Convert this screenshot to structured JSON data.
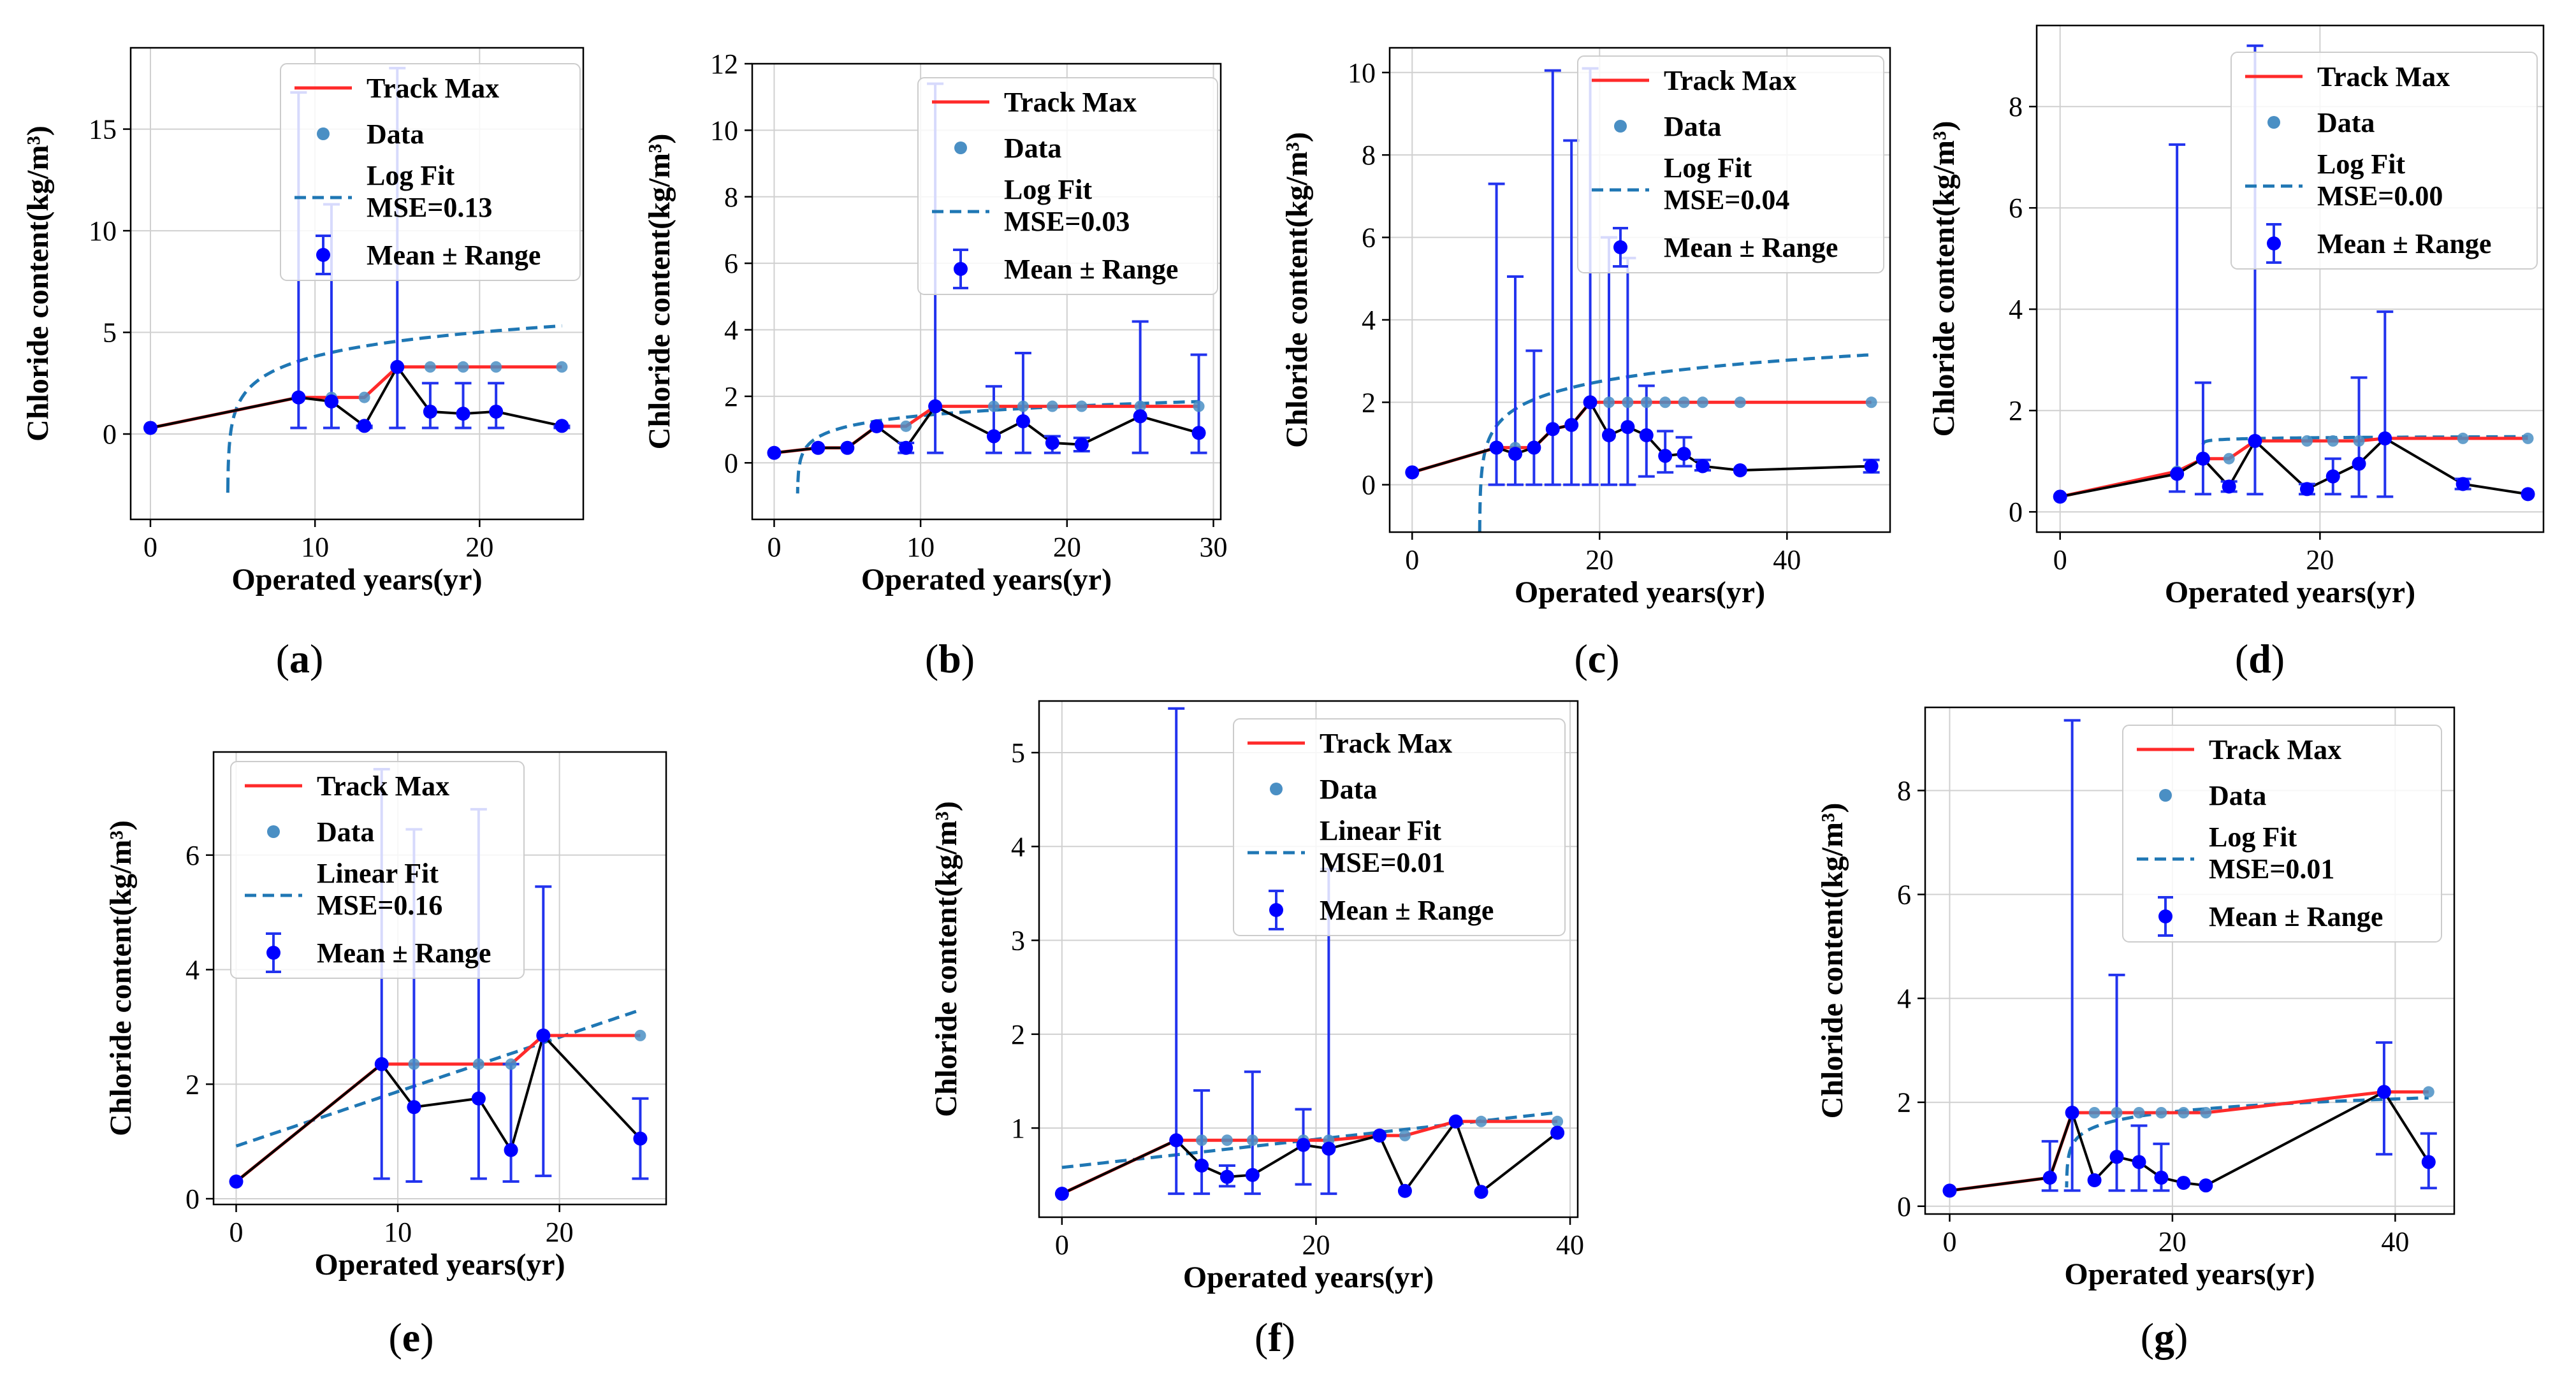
{
  "colors": {
    "track_max": "#ff2a2a",
    "data": "#4a8fc4",
    "fit": "#1f77b4",
    "mean": "#0000ff",
    "errbar": "#2233ee",
    "mean_line": "#000000"
  },
  "legend_labels": {
    "track_max": "Track Max",
    "data": "Data",
    "mean_range": "Mean ± Range"
  },
  "chart_data": [
    {
      "id": "a",
      "panel_label": "(a)",
      "type": "line",
      "xlabel": "Operated years(yr)",
      "ylabel": "Chloride content(kg/m³)",
      "xlim": [
        -1.2,
        26.3
      ],
      "ylim": [
        -4.2,
        19.0
      ],
      "xticks": [
        0,
        10,
        20
      ],
      "yticks": [
        0,
        5,
        10,
        15
      ],
      "legend": {
        "position": "top-right",
        "fit_line1": "Log Fit",
        "fit_line2": "MSE=0.13"
      },
      "fit": {
        "kind": "log",
        "a": 1.12,
        "b": 1.95,
        "x0": 4.7,
        "x_end": 25
      },
      "track_max": {
        "x": [
          0,
          9,
          11,
          13,
          15,
          17,
          19,
          21,
          25
        ],
        "y": [
          0.3,
          1.8,
          1.8,
          1.8,
          3.3,
          3.3,
          3.3,
          3.3,
          3.3
        ]
      },
      "mean": {
        "x": [
          0,
          9,
          11,
          13,
          15,
          17,
          19,
          21,
          25
        ],
        "y": [
          0.3,
          1.8,
          1.6,
          0.4,
          3.3,
          1.1,
          1.0,
          1.1,
          0.4
        ],
        "low": [
          0.3,
          0.3,
          0.3,
          0.3,
          0.3,
          0.3,
          0.3,
          0.3,
          0.3
        ],
        "high": [
          0.3,
          16.8,
          11.3,
          0.4,
          18.0,
          2.5,
          2.5,
          2.5,
          0.4
        ]
      }
    },
    {
      "id": "b",
      "panel_label": "(b)",
      "type": "line",
      "xlabel": "Operated years(yr)",
      "ylabel": "Chloride content(kg/m³)",
      "xlim": [
        -1.5,
        30.5
      ],
      "ylim": [
        -1.7,
        12.0
      ],
      "xticks": [
        0,
        10,
        20,
        30
      ],
      "yticks": [
        0,
        2,
        4,
        6,
        8,
        10,
        12
      ],
      "legend": {
        "position": "top-right",
        "fit_line1": "Log Fit",
        "fit_line2": "MSE=0.03"
      },
      "fit": {
        "kind": "log",
        "a": 0.36,
        "b": 0.65,
        "x0": 1.6,
        "x_end": 29
      },
      "track_max": {
        "x": [
          0,
          3,
          5,
          7,
          9,
          11,
          15,
          17,
          19,
          21,
          25,
          29
        ],
        "y": [
          0.3,
          0.45,
          0.45,
          1.1,
          1.1,
          1.7,
          1.7,
          1.7,
          1.7,
          1.7,
          1.7,
          1.7
        ]
      },
      "mean": {
        "x": [
          0,
          3,
          5,
          7,
          9,
          11,
          15,
          17,
          19,
          21,
          25,
          29
        ],
        "y": [
          0.3,
          0.45,
          0.45,
          1.1,
          0.45,
          1.7,
          0.8,
          1.25,
          0.6,
          0.55,
          1.4,
          0.9
        ],
        "low": [
          0.3,
          0.45,
          0.45,
          1.1,
          0.3,
          0.3,
          0.3,
          0.3,
          0.3,
          0.35,
          0.3,
          0.3
        ],
        "high": [
          0.3,
          0.45,
          0.45,
          1.1,
          0.6,
          11.4,
          2.3,
          3.3,
          0.8,
          0.75,
          4.25,
          3.25
        ]
      }
    },
    {
      "id": "c",
      "panel_label": "(c)",
      "type": "line",
      "xlabel": "Operated years(yr)",
      "ylabel": "Chloride content(kg/m³)",
      "xlim": [
        -2.4,
        51.0
      ],
      "ylim": [
        -1.15,
        10.6
      ],
      "xticks": [
        0,
        20,
        40
      ],
      "yticks": [
        0,
        2,
        4,
        6,
        8,
        10
      ],
      "legend": {
        "position": "top-right",
        "fit_line1": "Log Fit",
        "fit_line2": "MSE=0.04"
      },
      "fit": {
        "kind": "log",
        "a": 0.55,
        "b": 1.1,
        "x0": 7.2,
        "x_end": 49
      },
      "track_max": {
        "x": [
          0,
          9,
          11,
          13,
          15,
          17,
          19,
          21,
          23,
          25,
          27,
          29,
          31,
          35,
          49
        ],
        "y": [
          0.3,
          0.9,
          0.9,
          0.9,
          1.35,
          1.45,
          2.0,
          2.0,
          2.0,
          2.0,
          2.0,
          2.0,
          2.0,
          2.0,
          2.0
        ]
      },
      "mean": {
        "x": [
          0,
          9,
          11,
          13,
          15,
          17,
          19,
          21,
          23,
          25,
          27,
          29,
          31,
          35,
          49
        ],
        "y": [
          0.3,
          0.9,
          0.75,
          0.9,
          1.35,
          1.45,
          2.0,
          1.2,
          1.4,
          1.2,
          0.7,
          0.75,
          0.45,
          0.35,
          0.45
        ],
        "low": [
          0.3,
          0.0,
          0.0,
          0.0,
          0.0,
          0.0,
          0.0,
          0.0,
          0.0,
          0.2,
          0.3,
          0.45,
          0.35,
          0.35,
          0.3
        ],
        "high": [
          0.3,
          7.3,
          5.05,
          3.25,
          10.05,
          8.35,
          10.1,
          6.0,
          5.5,
          2.4,
          1.3,
          1.15,
          0.6,
          0.35,
          0.6
        ]
      }
    },
    {
      "id": "d",
      "panel_label": "(d)",
      "type": "line",
      "xlabel": "Operated years(yr)",
      "ylabel": "Chloride content(kg/m³)",
      "xlim": [
        -1.8,
        37.2
      ],
      "ylim": [
        -0.4,
        9.6
      ],
      "xticks": [
        0,
        20
      ],
      "yticks": [
        0,
        2,
        4,
        6,
        8
      ],
      "legend": {
        "position": "top-right",
        "fit_line1": "Log Fit",
        "fit_line2": "MSE=0.00"
      },
      "fit": {
        "kind": "log",
        "a": 0.02,
        "b": 1.42,
        "x0": 11,
        "x_end": 36
      },
      "track_max": {
        "x": [
          0,
          9,
          11,
          13,
          15,
          19,
          21,
          23,
          25,
          31,
          36
        ],
        "y": [
          0.3,
          0.8,
          1.05,
          1.05,
          1.4,
          1.4,
          1.4,
          1.4,
          1.45,
          1.45,
          1.45
        ]
      },
      "mean": {
        "x": [
          0,
          9,
          11,
          13,
          15,
          19,
          21,
          23,
          25,
          31,
          36
        ],
        "y": [
          0.3,
          0.75,
          1.05,
          0.5,
          1.4,
          0.45,
          0.7,
          0.95,
          1.45,
          0.55,
          0.35
        ],
        "low": [
          0.3,
          0.4,
          0.35,
          0.4,
          0.35,
          0.35,
          0.35,
          0.3,
          0.3,
          0.45,
          0.35
        ],
        "high": [
          0.3,
          7.25,
          2.55,
          0.6,
          9.2,
          0.55,
          1.05,
          2.65,
          3.95,
          0.65,
          0.35
        ]
      }
    },
    {
      "id": "e",
      "panel_label": "(e)",
      "type": "line",
      "xlabel": "Operated years(yr)",
      "ylabel": "Chloride content(kg/m³)",
      "xlim": [
        -1.4,
        26.6
      ],
      "ylim": [
        -0.1,
        7.8
      ],
      "xticks": [
        0,
        10,
        20
      ],
      "yticks": [
        0,
        2,
        4,
        6
      ],
      "legend": {
        "position": "top-left",
        "fit_line1": "Linear Fit",
        "fit_line2": "MSE=0.16"
      },
      "fit": {
        "kind": "linear",
        "m": 0.095,
        "c": 0.92,
        "x0": 0,
        "x_end": 25
      },
      "track_max": {
        "x": [
          0,
          9,
          11,
          15,
          17,
          19,
          25
        ],
        "y": [
          0.3,
          2.35,
          2.35,
          2.35,
          2.35,
          2.85,
          2.85
        ]
      },
      "mean": {
        "x": [
          0,
          9,
          11,
          15,
          17,
          19,
          25
        ],
        "y": [
          0.3,
          2.35,
          1.6,
          1.75,
          0.85,
          2.85,
          1.05
        ],
        "low": [
          0.3,
          0.35,
          0.3,
          0.35,
          0.3,
          0.4,
          0.35
        ],
        "high": [
          0.3,
          7.5,
          6.45,
          6.8,
          2.35,
          5.45,
          1.75
        ]
      }
    },
    {
      "id": "f",
      "panel_label": "(f)",
      "type": "line",
      "xlabel": "Operated years(yr)",
      "ylabel": "Chloride content(kg/m³)",
      "xlim": [
        -1.8,
        40.6
      ],
      "ylim": [
        0.05,
        5.55
      ],
      "xticks": [
        0,
        20,
        40
      ],
      "yticks": [
        1,
        2,
        3,
        4,
        5
      ],
      "legend": {
        "position": "top-right",
        "fit_line1": "Linear Fit",
        "fit_line2": "MSE=0.01"
      },
      "fit": {
        "kind": "linear",
        "m": 0.015,
        "c": 0.58,
        "x0": 0,
        "x_end": 39
      },
      "track_max": {
        "x": [
          0,
          9,
          11,
          13,
          15,
          19,
          21,
          25,
          27,
          31,
          33,
          39
        ],
        "y": [
          0.3,
          0.87,
          0.87,
          0.87,
          0.87,
          0.87,
          0.87,
          0.92,
          0.92,
          1.07,
          1.07,
          1.07
        ]
      },
      "mean": {
        "x": [
          0,
          9,
          11,
          13,
          15,
          19,
          21,
          25,
          27,
          31,
          33,
          39
        ],
        "y": [
          0.3,
          0.87,
          0.6,
          0.48,
          0.5,
          0.82,
          0.78,
          0.92,
          0.33,
          1.07,
          0.32,
          0.95
        ],
        "low": [
          0.3,
          0.3,
          0.3,
          0.38,
          0.3,
          0.4,
          0.3,
          0.92,
          0.33,
          1.07,
          0.32,
          0.95
        ],
        "high": [
          0.3,
          5.47,
          1.4,
          0.6,
          1.6,
          1.2,
          3.76,
          0.92,
          0.33,
          1.07,
          0.32,
          0.95
        ]
      }
    },
    {
      "id": "g",
      "panel_label": "(g)",
      "type": "line",
      "xlabel": "Operated years(yr)",
      "ylabel": "Chloride content(kg/m³)",
      "xlim": [
        -2.2,
        45.3
      ],
      "ylim": [
        -0.15,
        9.6
      ],
      "xticks": [
        0,
        20,
        40
      ],
      "yticks": [
        0,
        2,
        4,
        6,
        8
      ],
      "legend": {
        "position": "top-right",
        "fit_line1": "Log Fit",
        "fit_line2": "MSE=0.01"
      },
      "fit": {
        "kind": "log",
        "a": 0.22,
        "b": 1.32,
        "x0": 10.5,
        "x_end": 43
      },
      "track_max": {
        "x": [
          0,
          9,
          11,
          13,
          15,
          17,
          19,
          21,
          23,
          39,
          43
        ],
        "y": [
          0.3,
          0.55,
          1.8,
          1.8,
          1.8,
          1.8,
          1.8,
          1.8,
          1.8,
          2.2,
          2.2
        ]
      },
      "mean": {
        "x": [
          0,
          9,
          11,
          13,
          15,
          17,
          19,
          21,
          23,
          39,
          43
        ],
        "y": [
          0.3,
          0.55,
          1.8,
          0.5,
          0.95,
          0.85,
          0.55,
          0.45,
          0.4,
          2.2,
          0.85
        ],
        "low": [
          0.3,
          0.3,
          0.3,
          0.5,
          0.3,
          0.3,
          0.3,
          0.45,
          0.4,
          1.0,
          0.35
        ],
        "high": [
          0.3,
          1.25,
          9.35,
          0.5,
          4.45,
          1.55,
          1.2,
          0.45,
          0.4,
          3.15,
          1.4
        ]
      }
    }
  ]
}
